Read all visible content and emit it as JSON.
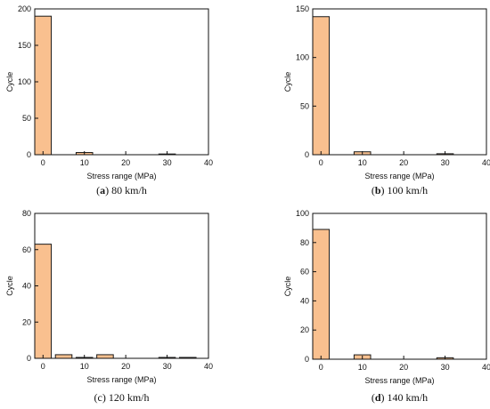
{
  "chart_data": [
    {
      "type": "bar",
      "caption_letter": "a",
      "caption_text": " 80 km/h",
      "caption_letter_bold": true,
      "xlabel": "Stress range (MPa)",
      "ylabel": "Cycle",
      "xlim": [
        -2,
        40
      ],
      "ylim": [
        0,
        200
      ],
      "xticks": [
        0,
        10,
        20,
        30,
        40
      ],
      "yticks": [
        0,
        50,
        100,
        150,
        200
      ],
      "x": [
        0,
        10,
        30
      ],
      "values": [
        190,
        3,
        1
      ],
      "bar_width": 4,
      "bar_color": "#f9c08f"
    },
    {
      "type": "bar",
      "caption_letter": "b",
      "caption_text": " 100 km/h",
      "caption_letter_bold": true,
      "xlabel": "Stress range (MPa)",
      "ylabel": "Cycle",
      "xlim": [
        -2,
        40
      ],
      "ylim": [
        0,
        150
      ],
      "xticks": [
        0,
        10,
        20,
        30,
        40
      ],
      "yticks": [
        0,
        50,
        100,
        150
      ],
      "x": [
        0,
        10,
        30
      ],
      "values": [
        142,
        3,
        1
      ],
      "bar_width": 4,
      "bar_color": "#f9c08f"
    },
    {
      "type": "bar",
      "caption_letter": "c",
      "caption_text": " 120 km/h",
      "caption_letter_bold": false,
      "xlabel": "Stress range (MPa)",
      "ylabel": "Cycle",
      "xlim": [
        -2,
        40
      ],
      "ylim": [
        0,
        80
      ],
      "xticks": [
        0,
        10,
        20,
        30,
        40
      ],
      "yticks": [
        0,
        20,
        40,
        60,
        80
      ],
      "x": [
        0,
        5,
        10,
        15,
        30,
        35
      ],
      "values": [
        63,
        2,
        0.5,
        2,
        0.5,
        0.5
      ],
      "bar_width": 4,
      "bar_color": "#f9c08f"
    },
    {
      "type": "bar",
      "caption_letter": "d",
      "caption_text": " 140 km/h",
      "caption_letter_bold": true,
      "xlabel": "Stress range (MPa)",
      "ylabel": "Cycle",
      "xlim": [
        -2,
        40
      ],
      "ylim": [
        0,
        100
      ],
      "xticks": [
        0,
        10,
        20,
        30,
        40
      ],
      "yticks": [
        0,
        20,
        40,
        60,
        80,
        100
      ],
      "x": [
        0,
        10,
        30
      ],
      "values": [
        89,
        3,
        1
      ],
      "bar_width": 4,
      "bar_color": "#f9c08f"
    }
  ]
}
